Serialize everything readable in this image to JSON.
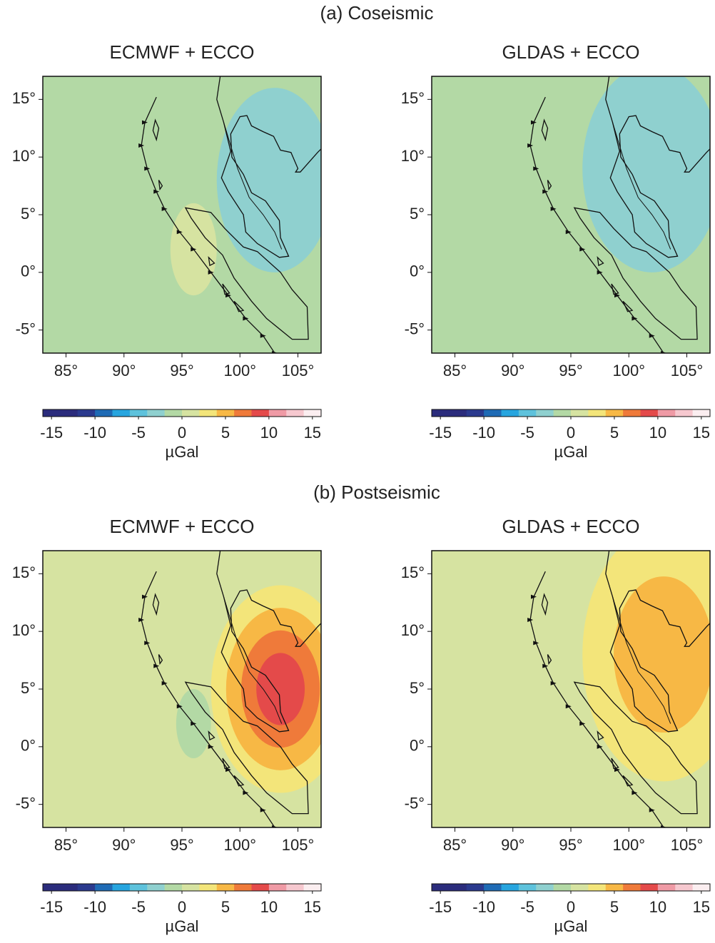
{
  "sections": [
    {
      "title": "(a) Coseismic",
      "panels": [
        {
          "title": "ECMWF + ECCO",
          "background": -1,
          "anomalies": [
            {
              "lon": 103,
              "lat": 8,
              "value": -3,
              "rx": 5,
              "ry": 8
            },
            {
              "lon": 96,
              "lat": 2,
              "value": 1,
              "rx": 2,
              "ry": 4
            }
          ]
        },
        {
          "title": "GLDAS + ECCO",
          "background": -1,
          "anomalies": [
            {
              "lon": 102,
              "lat": 9,
              "value": -3,
              "rx": 6,
              "ry": 9
            }
          ]
        }
      ]
    },
    {
      "title": "(b) Postseismic",
      "panels": [
        {
          "title": "ECMWF + ECCO",
          "background": 1,
          "anomalies": [
            {
              "lon": 103.5,
              "lat": 5,
              "value": 9,
              "rx": 6,
              "ry": 9
            },
            {
              "lon": 96,
              "lat": 2,
              "value": -1,
              "rx": 1.5,
              "ry": 3
            }
          ]
        },
        {
          "title": "GLDAS + ECCO",
          "background": 1,
          "anomalies": [
            {
              "lon": 103,
              "lat": 8,
              "value": 5,
              "rx": 7,
              "ry": 11
            }
          ]
        }
      ]
    }
  ],
  "map": {
    "xlim": [
      83,
      107
    ],
    "ylim": [
      -7,
      17
    ],
    "xticks": [
      {
        "value": 85,
        "label": "85°"
      },
      {
        "value": 90,
        "label": "90°"
      },
      {
        "value": 95,
        "label": "95°"
      },
      {
        "value": 100,
        "label": "100°"
      },
      {
        "value": 105,
        "label": "105°"
      }
    ],
    "yticks": [
      {
        "value": 15,
        "label": "15°"
      },
      {
        "value": 10,
        "label": "10°"
      },
      {
        "value": 5,
        "label": "5°"
      },
      {
        "value": 0,
        "label": "0°"
      },
      {
        "value": -5,
        "label": "-5°"
      }
    ]
  },
  "colorbar": {
    "lim": [
      -16,
      16
    ],
    "ticks": [
      -15,
      -10,
      -5,
      0,
      5,
      10,
      15
    ],
    "unit": "µGal",
    "colors": [
      "#2b2c7c",
      "#2b2c7c",
      "#2b3a8e",
      "#1f6bb5",
      "#27a5df",
      "#5ec2dc",
      "#8fd0cf",
      "#b3d9a5",
      "#d6e3a1",
      "#f3e57a",
      "#f7b845",
      "#ef7a3a",
      "#e44a4a",
      "#ef9aa5",
      "#f6c8cf",
      "#fbeef0"
    ]
  }
}
